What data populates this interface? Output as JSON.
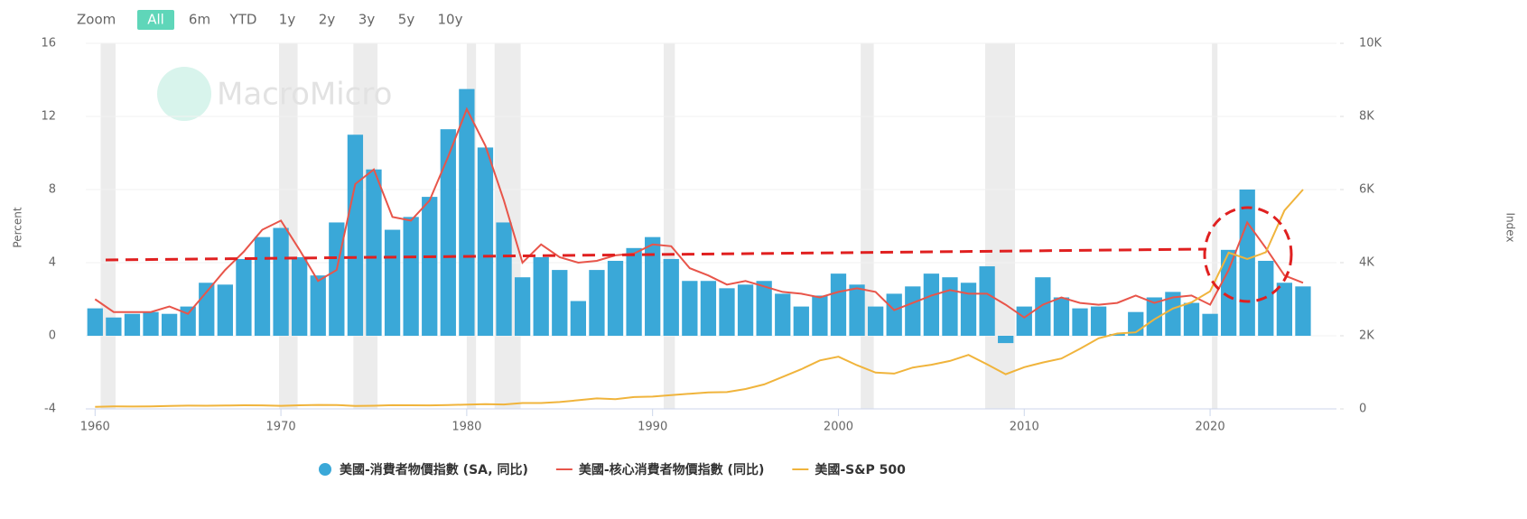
{
  "chart_data": {
    "type": "bar-line",
    "zoom": {
      "label": "Zoom",
      "buttons": [
        "All",
        "6m",
        "YTD",
        "1y",
        "2y",
        "3y",
        "5y",
        "10y"
      ],
      "active": "All"
    },
    "watermark": "MacroMicro",
    "y_label": "Percent",
    "y2_label": "Index",
    "x": [
      1960,
      1961,
      1962,
      1963,
      1964,
      1965,
      1966,
      1967,
      1968,
      1969,
      1970,
      1971,
      1972,
      1973,
      1974,
      1975,
      1976,
      1977,
      1978,
      1979,
      1980,
      1981,
      1982,
      1983,
      1984,
      1985,
      1986,
      1987,
      1988,
      1989,
      1990,
      1991,
      1992,
      1993,
      1994,
      1995,
      1996,
      1997,
      1998,
      1999,
      2000,
      2001,
      2002,
      2003,
      2004,
      2005,
      2006,
      2007,
      2008,
      2009,
      2010,
      2011,
      2012,
      2013,
      2014,
      2015,
      2016,
      2017,
      2018,
      2019,
      2020,
      2021,
      2022,
      2023,
      2024,
      2025
    ],
    "series": [
      {
        "name": "美國-消費者物價指數 (SA, 同比)",
        "color": "#3aa8d8",
        "kind": "bar",
        "values": [
          1.5,
          1.0,
          1.2,
          1.3,
          1.2,
          1.6,
          2.9,
          2.8,
          4.2,
          5.4,
          5.9,
          4.3,
          3.3,
          6.2,
          11.0,
          9.1,
          5.8,
          6.5,
          7.6,
          11.3,
          13.5,
          10.3,
          6.2,
          3.2,
          4.3,
          3.6,
          1.9,
          3.6,
          4.1,
          4.8,
          5.4,
          4.2,
          3.0,
          3.0,
          2.6,
          2.8,
          3.0,
          2.3,
          1.6,
          2.2,
          3.4,
          2.8,
          1.6,
          2.3,
          2.7,
          3.4,
          3.2,
          2.9,
          3.8,
          -0.4,
          1.6,
          3.2,
          2.1,
          1.5,
          1.6,
          0.1,
          1.3,
          2.1,
          2.4,
          1.8,
          1.2,
          4.7,
          8.0,
          4.1,
          2.9,
          2.7
        ]
      },
      {
        "name": "美國-核心消費者物價指數 (同比)",
        "color": "#e8554a",
        "kind": "line",
        "values": [
          2.0,
          1.3,
          1.3,
          1.3,
          1.6,
          1.2,
          2.4,
          3.6,
          4.6,
          5.8,
          6.3,
          4.7,
          3.0,
          3.6,
          8.3,
          9.1,
          6.5,
          6.3,
          7.4,
          9.8,
          12.4,
          10.4,
          7.4,
          4.0,
          5.0,
          4.3,
          4.0,
          4.1,
          4.4,
          4.5,
          5.0,
          4.9,
          3.7,
          3.3,
          2.8,
          3.0,
          2.7,
          2.4,
          2.3,
          2.1,
          2.4,
          2.6,
          2.4,
          1.4,
          1.8,
          2.2,
          2.5,
          2.3,
          2.3,
          1.7,
          1.0,
          1.7,
          2.1,
          1.8,
          1.7,
          1.8,
          2.2,
          1.8,
          2.1,
          2.2,
          1.7,
          3.6,
          6.2,
          4.8,
          3.3,
          2.9
        ]
      },
      {
        "name": "美國-S&P 500",
        "color": "#f0b43c",
        "kind": "line",
        "axis": "y2",
        "values": [
          58,
          68,
          63,
          70,
          82,
          88,
          86,
          92,
          98,
          97,
          83,
          98,
          109,
          107,
          82,
          86,
          102,
          98,
          96,
          104,
          118,
          128,
          120,
          160,
          160,
          187,
          236,
          287,
          266,
          323,
          335,
          376,
          415,
          452,
          460,
          542,
          670,
          873,
          1085,
          1327,
          1427,
          1194,
          993,
          965,
          1131,
          1207,
          1310,
          1477,
          1220,
          948,
          1140,
          1268,
          1379,
          1644,
          1931,
          2061,
          2094,
          2449,
          2746,
          2913,
          3218,
          4273,
          4099,
          4283,
          5428,
          6000
        ]
      }
    ],
    "shaded_periods": [
      [
        1960.3,
        1961.1
      ],
      [
        1969.9,
        1970.9
      ],
      [
        1973.9,
        1975.2
      ],
      [
        1980.0,
        1980.5
      ],
      [
        1981.5,
        1982.9
      ],
      [
        1990.6,
        1991.2
      ],
      [
        2001.2,
        2001.9
      ],
      [
        2007.9,
        2009.5
      ],
      [
        2020.1,
        2020.4
      ]
    ],
    "xlim": [
      1959.5,
      2026.8
    ],
    "xticks": [
      1960,
      1970,
      1980,
      1990,
      2000,
      2010,
      2020
    ],
    "ylim": [
      -4,
      16
    ],
    "yticks": [
      -4,
      0,
      4,
      8,
      12,
      16
    ],
    "y2lim": [
      0,
      10000
    ],
    "y2ticks": [
      0,
      {
        "value": 2000,
        "label": "2K"
      },
      {
        "value": 4000,
        "label": "4K"
      },
      {
        "value": 6000,
        "label": "6K"
      },
      {
        "value": 8000,
        "label": "8K"
      },
      {
        "value": 10000,
        "label": "10K"
      }
    ],
    "grid": true
  }
}
